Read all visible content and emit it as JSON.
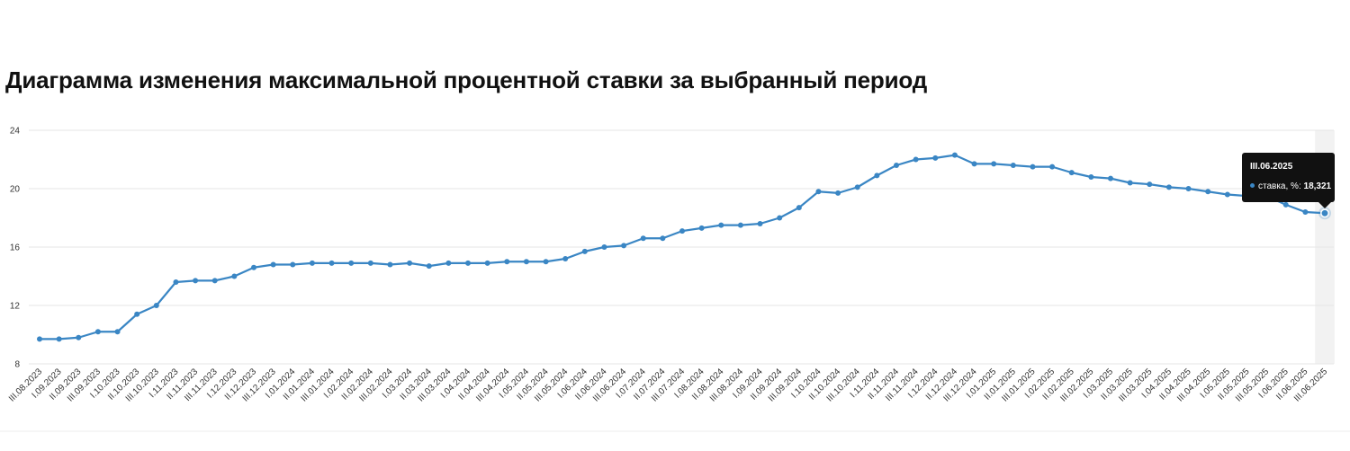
{
  "chart_data": {
    "type": "line",
    "title": "Диаграмма изменения максимальной процентной ставки за выбранный период",
    "xlabel": "",
    "ylabel": "",
    "ylim": [
      8,
      24
    ],
    "yticks": [
      "24",
      "20",
      "16",
      "12",
      "8"
    ],
    "grid": true,
    "series_color": "#3a86c4",
    "categories": [
      "III.08.2023",
      "I.09.2023",
      "II.09.2023",
      "III.09.2023",
      "I.10.2023",
      "II.10.2023",
      "III.10.2023",
      "I.11.2023",
      "II.11.2023",
      "III.11.2023",
      "I.12.2023",
      "II.12.2023",
      "III.12.2023",
      "I.01.2024",
      "II.01.2024",
      "III.01.2024",
      "I.02.2024",
      "II.02.2024",
      "III.02.2024",
      "I.03.2024",
      "II.03.2024",
      "III.03.2024",
      "I.04.2024",
      "II.04.2024",
      "III.04.2024",
      "I.05.2024",
      "II.05.2024",
      "III.05.2024",
      "I.06.2024",
      "II.06.2024",
      "III.06.2024",
      "I.07.2024",
      "II.07.2024",
      "III.07.2024",
      "I.08.2024",
      "II.08.2024",
      "III.08.2024",
      "I.09.2024",
      "II.09.2024",
      "III.09.2024",
      "I.10.2024",
      "II.10.2024",
      "III.10.2024",
      "I.11.2024",
      "II.11.2024",
      "III.11.2024",
      "I.12.2024",
      "II.12.2024",
      "III.12.2024",
      "I.01.2025",
      "II.01.2025",
      "III.01.2025",
      "I.02.2025",
      "II.02.2025",
      "III.02.2025",
      "I.03.2025",
      "II.03.2025",
      "III.03.2025",
      "I.04.2025",
      "II.04.2025",
      "III.04.2025",
      "I.05.2025",
      "II.05.2025",
      "III.05.2025",
      "I.06.2025",
      "II.06.2025",
      "III.06.2025"
    ],
    "series": [
      {
        "name": "ставка, %",
        "values": [
          9.7,
          9.7,
          9.8,
          10.2,
          10.2,
          11.4,
          12.0,
          13.6,
          13.7,
          13.7,
          14.0,
          14.6,
          14.8,
          14.8,
          14.9,
          14.9,
          14.9,
          14.9,
          14.8,
          14.9,
          14.7,
          14.9,
          14.9,
          14.9,
          15.0,
          15.0,
          15.0,
          15.2,
          15.7,
          16.0,
          16.1,
          16.6,
          16.6,
          17.1,
          17.3,
          17.5,
          17.5,
          17.6,
          18.0,
          18.7,
          19.8,
          19.7,
          20.1,
          20.9,
          21.6,
          22.0,
          22.1,
          22.3,
          21.7,
          21.7,
          21.6,
          21.5,
          21.5,
          21.1,
          20.8,
          20.7,
          20.4,
          20.3,
          20.1,
          20.0,
          19.8,
          19.6,
          19.5,
          19.5,
          18.9,
          18.4,
          18.321
        ]
      }
    ],
    "tooltip": {
      "date": "III.06.2025",
      "label": "ставка, %:",
      "value": "18,321"
    }
  }
}
